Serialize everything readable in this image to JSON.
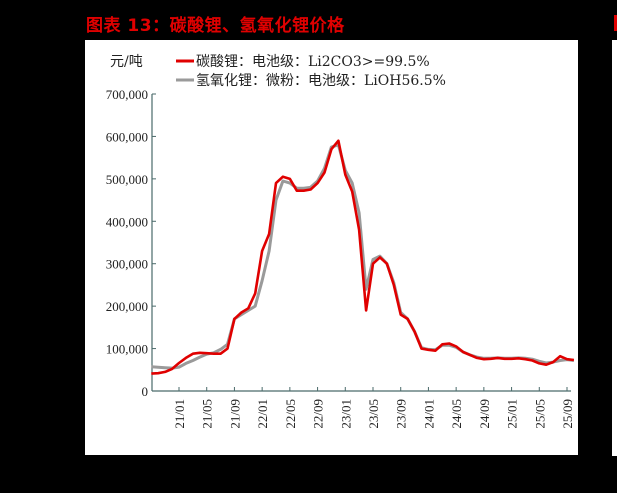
{
  "title": "图表 13：碳酸锂、氢氧化锂价格",
  "chart_data": {
    "type": "line",
    "title": "图表 13：碳酸锂、氢氧化锂价格",
    "ylabel": "元/吨",
    "xlabel": "",
    "ylim": [
      0,
      700000
    ],
    "yticks": [
      0,
      100000,
      200000,
      300000,
      400000,
      500000,
      600000,
      700000
    ],
    "ytick_labels": [
      "0",
      "100,000",
      "200,000",
      "300,000",
      "400,000",
      "500,000",
      "600,000",
      "700,000"
    ],
    "xtick_labels": [
      "21/01",
      "21/05",
      "21/09",
      "22/01",
      "22/05",
      "22/09",
      "23/01",
      "23/05",
      "23/09",
      "24/01",
      "24/05",
      "24/09",
      "25/01",
      "25/05",
      "25/09"
    ],
    "x_start": "2020/09",
    "x_end": "2025/10",
    "grid": false,
    "legend_position": "top-left",
    "series": [
      {
        "name": "碳酸锂：电池级：Li2CO3>=99.5%",
        "color": "#e00000",
        "values": [
          41000,
          42000,
          45000,
          52000,
          66000,
          78000,
          88000,
          90000,
          89000,
          88000,
          88000,
          100000,
          170000,
          185000,
          195000,
          230000,
          330000,
          370000,
          490000,
          505000,
          500000,
          472000,
          472000,
          475000,
          490000,
          515000,
          570000,
          590000,
          510000,
          470000,
          380000,
          190000,
          300000,
          315000,
          300000,
          250000,
          180000,
          170000,
          140000,
          100000,
          97000,
          95000,
          110000,
          112000,
          105000,
          92000,
          85000,
          78000,
          75000,
          76000,
          78000,
          76000,
          76000,
          77000,
          75000,
          72000,
          65000,
          62000,
          68000,
          82000,
          75000,
          73000
        ]
      },
      {
        "name": "氢氧化锂：微粉：电池级：LiOH56.5%",
        "color": "#9a9a9a",
        "values": [
          57000,
          56000,
          55000,
          54000,
          56000,
          65000,
          72000,
          80000,
          87000,
          90000,
          98000,
          110000,
          170000,
          180000,
          190000,
          200000,
          260000,
          330000,
          450000,
          495000,
          490000,
          478000,
          478000,
          480000,
          495000,
          525000,
          575000,
          580000,
          520000,
          490000,
          420000,
          240000,
          310000,
          318000,
          300000,
          255000,
          185000,
          170000,
          140000,
          102000,
          98000,
          97000,
          108000,
          108000,
          103000,
          92000,
          85000,
          80000,
          77000,
          77000,
          78000,
          77000,
          77000,
          78000,
          77000,
          75000,
          70000,
          66000,
          68000,
          72000,
          74000,
          72000
        ]
      }
    ]
  }
}
